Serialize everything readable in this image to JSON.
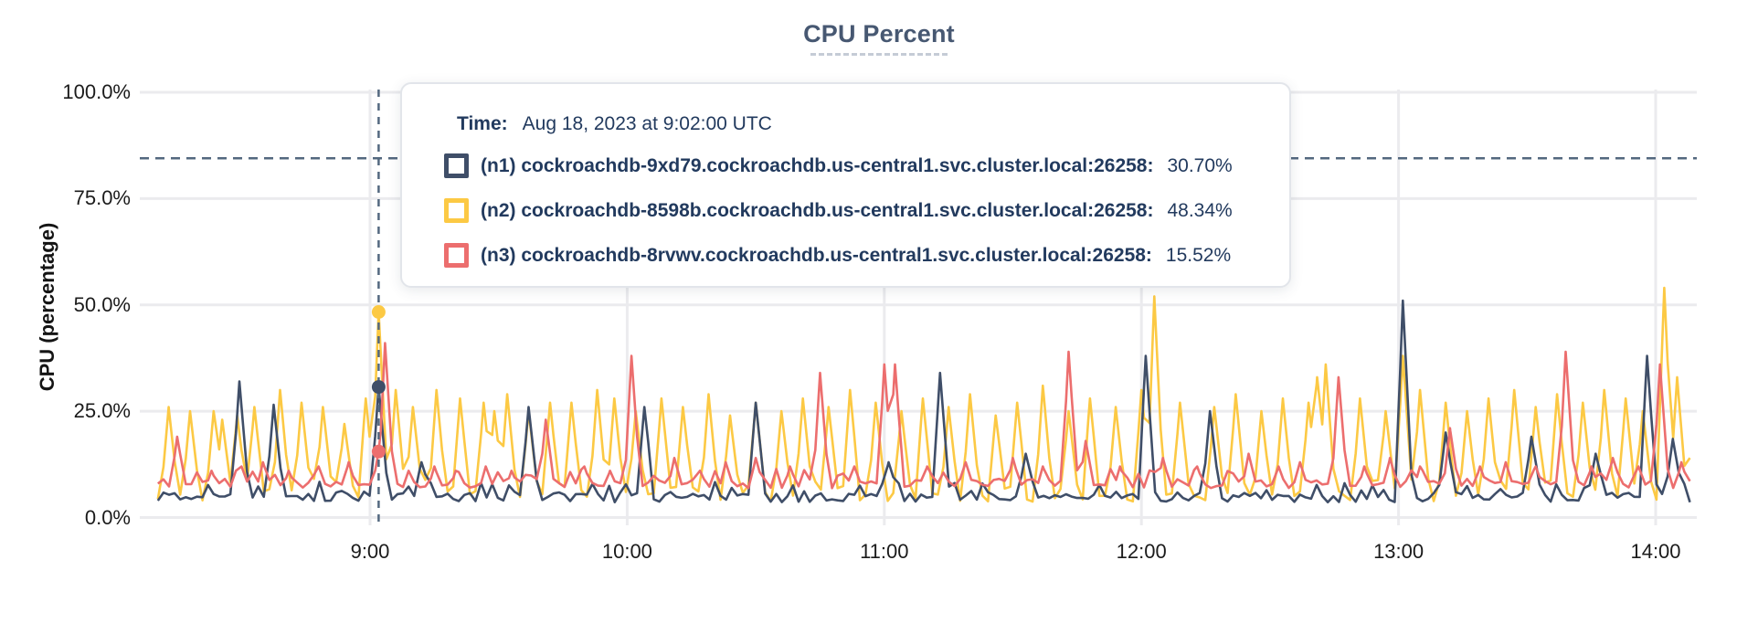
{
  "title": {
    "text": "CPU Percent"
  },
  "y_axis": {
    "label": "CPU (percentage)",
    "ticks": [
      {
        "label": "0.0%",
        "value": 0
      },
      {
        "label": "25.0%",
        "value": 25
      },
      {
        "label": "50.0%",
        "value": 50
      },
      {
        "label": "75.0%",
        "value": 75
      },
      {
        "label": "100.0%",
        "value": 100
      }
    ]
  },
  "x_axis": {
    "ticks": [
      {
        "label": "9:00",
        "minutes": 540
      },
      {
        "label": "10:00",
        "minutes": 600
      },
      {
        "label": "11:00",
        "minutes": 660
      },
      {
        "label": "12:00",
        "minutes": 720
      },
      {
        "label": "13:00",
        "minutes": 780
      },
      {
        "label": "14:00",
        "minutes": 840
      }
    ]
  },
  "colors": {
    "n1": "#3f4e68",
    "n2": "#fcc944",
    "n3": "#ec6e6e",
    "grid": "#ebebee",
    "tracker": "#53687f",
    "threshold": "#53687f",
    "title_text": "#475872",
    "tooltip_text": "#223a5e"
  },
  "tooltip": {
    "time_label": "Time:",
    "time_value": "Aug 18, 2023 at 9:02:00 UTC",
    "rows": [
      {
        "series_id": "n1",
        "label": "(n1) cockroachdb-9xd79.cockroachdb.us-central1.svc.cluster.local:26258:",
        "value_label": "30.70%"
      },
      {
        "series_id": "n2",
        "label": "(n2) cockroachdb-8598b.cockroachdb.us-central1.svc.cluster.local:26258:",
        "value_label": "48.34%"
      },
      {
        "series_id": "n3",
        "label": "(n3) cockroachdb-8rvwv.cockroachdb.us-central1.svc.cluster.local:26258:",
        "value_label": "15.52%"
      }
    ]
  },
  "chart_data": {
    "type": "line",
    "title": "CPU Percent",
    "ylabel": "CPU (percentage)",
    "x_unit": "minutes_since_midnight_utc",
    "x_range": [
      490.5,
      848
    ],
    "ylim": [
      0,
      100
    ],
    "grid": true,
    "legend_position": "tooltip-overlay",
    "threshold_line_pct": 84.5,
    "highlight": {
      "minutes": 542,
      "time": "Aug 18, 2023 at 9:02:00 UTC",
      "values": {
        "n1": 30.7,
        "n2": 48.34,
        "n3": 15.52
      }
    },
    "render_order": [
      "n2",
      "n1",
      "n3"
    ],
    "series": [
      {
        "id": "n1",
        "name": "(n1) cockroachdb-9xd79.cockroachdb.us-central1.svc.cluster.local:26258",
        "color": "#3f4e68",
        "baseline": 4.8,
        "noise": 1.2,
        "spikes": [
          [
            509.5,
            32
          ],
          [
            517.5,
            26.5
          ],
          [
            542,
            30.7
          ],
          [
            552,
            13
          ],
          [
            577,
            26
          ],
          [
            604,
            26
          ],
          [
            630,
            27
          ],
          [
            661,
            13
          ],
          [
            673,
            34
          ],
          [
            693,
            15
          ],
          [
            721,
            38
          ],
          [
            736,
            25
          ],
          [
            781,
            51
          ],
          [
            791,
            20
          ],
          [
            811,
            19
          ],
          [
            826,
            15
          ],
          [
            838,
            38
          ],
          [
            844,
            18.5
          ]
        ]
      },
      {
        "id": "n2",
        "name": "(n2) cockroachdb-8598b.cockroachdb.us-central1.svc.cluster.local:26258",
        "color": "#fcc944",
        "baseline": 5.2,
        "noise": 1.6,
        "spikes": [
          [
            493,
            26
          ],
          [
            498,
            25
          ],
          [
            503.5,
            25
          ],
          [
            505.5,
            23
          ],
          [
            509,
            24
          ],
          [
            513,
            26
          ],
          [
            519,
            30
          ],
          [
            524,
            27
          ],
          [
            529,
            26
          ],
          [
            534,
            22
          ],
          [
            539,
            28
          ],
          [
            542,
            48.34
          ],
          [
            546,
            30
          ],
          [
            550,
            26
          ],
          [
            555.5,
            30
          ],
          [
            561,
            28
          ],
          [
            566.5,
            27
          ],
          [
            569,
            25
          ],
          [
            572,
            29
          ],
          [
            577,
            25
          ],
          [
            582,
            27
          ],
          [
            587,
            27
          ],
          [
            593,
            30
          ],
          [
            597,
            28
          ],
          [
            602,
            25
          ],
          [
            608,
            28
          ],
          [
            613,
            26
          ],
          [
            619,
            29
          ],
          [
            624,
            24
          ],
          [
            630,
            27
          ],
          [
            636,
            25
          ],
          [
            641,
            28
          ],
          [
            647,
            26
          ],
          [
            652,
            30
          ],
          [
            658,
            27
          ],
          [
            664,
            25
          ],
          [
            669,
            28
          ],
          [
            675,
            26
          ],
          [
            680,
            29
          ],
          [
            686,
            24
          ],
          [
            691,
            27
          ],
          [
            697,
            31
          ],
          [
            703,
            25
          ],
          [
            708,
            28
          ],
          [
            714,
            26
          ],
          [
            720,
            30
          ],
          [
            723,
            52
          ],
          [
            729,
            27
          ],
          [
            737,
            26
          ],
          [
            742,
            29
          ],
          [
            748,
            25
          ],
          [
            753,
            28
          ],
          [
            759,
            27
          ],
          [
            761,
            33
          ],
          [
            763,
            36
          ],
          [
            771,
            28
          ],
          [
            777,
            25
          ],
          [
            781,
            38
          ],
          [
            785,
            30
          ],
          [
            791,
            27
          ],
          [
            796,
            25
          ],
          [
            801,
            28
          ],
          [
            807,
            30
          ],
          [
            812,
            26
          ],
          [
            817,
            29
          ],
          [
            823,
            27
          ],
          [
            828,
            30
          ],
          [
            833,
            28
          ],
          [
            837,
            25
          ],
          [
            842,
            54
          ],
          [
            845,
            33
          ],
          [
            848,
            14
          ]
        ]
      },
      {
        "id": "n3",
        "name": "(n3) cockroachdb-8rvwv.cockroachdb.us-central1.svc.cluster.local:26258",
        "color": "#ec6e6e",
        "baseline": 8.0,
        "noise": 1.1,
        "spikes": [
          [
            495,
            19
          ],
          [
            503,
            11
          ],
          [
            510,
            12
          ],
          [
            515,
            13
          ],
          [
            521,
            11
          ],
          [
            528,
            12
          ],
          [
            535,
            13
          ],
          [
            542,
            15.52
          ],
          [
            543.5,
            41
          ],
          [
            549,
            11
          ],
          [
            555,
            12
          ],
          [
            560,
            11
          ],
          [
            567,
            12
          ],
          [
            573,
            11
          ],
          [
            581,
            23
          ],
          [
            590,
            12
          ],
          [
            596,
            11
          ],
          [
            601,
            38
          ],
          [
            611,
            14
          ],
          [
            617,
            11
          ],
          [
            623,
            13
          ],
          [
            630,
            14
          ],
          [
            638,
            12
          ],
          [
            645,
            34
          ],
          [
            653,
            12
          ],
          [
            660,
            36
          ],
          [
            662.5,
            36
          ],
          [
            670,
            12
          ],
          [
            679,
            13
          ],
          [
            690,
            14
          ],
          [
            697,
            12
          ],
          [
            703,
            39
          ],
          [
            707,
            18
          ],
          [
            715,
            12
          ],
          [
            725,
            14
          ],
          [
            733,
            12
          ],
          [
            745,
            15
          ],
          [
            752,
            12
          ],
          [
            757,
            13
          ],
          [
            766,
            33
          ],
          [
            772,
            12
          ],
          [
            778,
            14
          ],
          [
            785,
            12
          ],
          [
            792,
            21
          ],
          [
            799,
            12
          ],
          [
            805,
            13
          ],
          [
            812,
            12
          ],
          [
            819,
            39
          ],
          [
            825,
            12
          ],
          [
            830,
            14
          ],
          [
            836,
            12
          ],
          [
            841,
            36
          ],
          [
            846,
            13
          ]
        ]
      }
    ]
  }
}
